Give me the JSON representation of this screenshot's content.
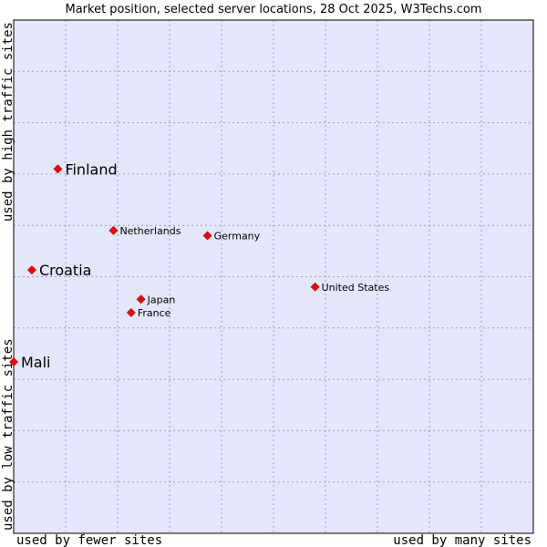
{
  "chart_data": {
    "type": "scatter",
    "title": "Market position, selected server locations, 28 Oct 2025, W3Techs.com",
    "xlabel_left": "used by fewer sites",
    "xlabel_right": "used by many sites",
    "ylabel_bottom": "used by low traffic sites",
    "ylabel_top": "used by high traffic sites",
    "xlim": [
      0,
      100
    ],
    "ylim": [
      0,
      100
    ],
    "grid": true,
    "colors": {
      "plot_background": "#e4e6fa",
      "grid": "#9aa0c8",
      "border": "#000000",
      "marker": "#ff0000"
    },
    "points": [
      {
        "name": "Finland",
        "x": 8.5,
        "y": 71.0,
        "size": "large"
      },
      {
        "name": "Netherlands",
        "x": 19.2,
        "y": 59.0,
        "size": "small"
      },
      {
        "name": "Germany",
        "x": 37.3,
        "y": 58.0,
        "size": "small"
      },
      {
        "name": "Croatia",
        "x": 3.5,
        "y": 51.3,
        "size": "large"
      },
      {
        "name": "United States",
        "x": 58.0,
        "y": 48.0,
        "size": "small"
      },
      {
        "name": "Japan",
        "x": 24.5,
        "y": 45.6,
        "size": "small"
      },
      {
        "name": "France",
        "x": 22.6,
        "y": 43.0,
        "size": "small"
      },
      {
        "name": "Mali",
        "x": 0.0,
        "y": 33.4,
        "size": "large"
      }
    ]
  }
}
